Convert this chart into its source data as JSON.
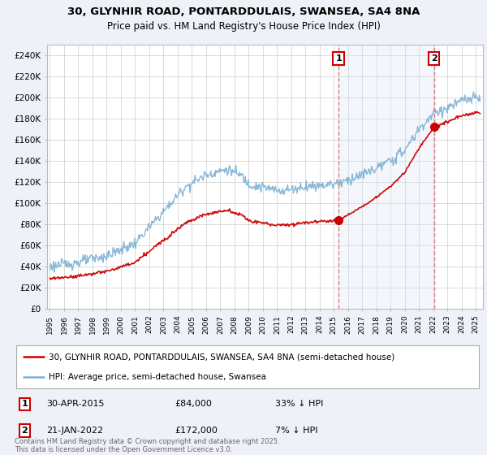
{
  "title": "30, GLYNHIR ROAD, PONTARDDULAIS, SWANSEA, SA4 8NA",
  "subtitle": "Price paid vs. HM Land Registry's House Price Index (HPI)",
  "ylabel_ticks": [
    "£0",
    "£20K",
    "£40K",
    "£60K",
    "£80K",
    "£100K",
    "£120K",
    "£140K",
    "£160K",
    "£180K",
    "£200K",
    "£220K",
    "£240K"
  ],
  "ytick_vals": [
    0,
    20000,
    40000,
    60000,
    80000,
    100000,
    120000,
    140000,
    160000,
    180000,
    200000,
    220000,
    240000
  ],
  "ylim": [
    0,
    250000
  ],
  "xlim_start": 1994.8,
  "xlim_end": 2025.5,
  "sale1_date": 2015.33,
  "sale1_price": 84000,
  "sale1_label": "1",
  "sale2_date": 2022.05,
  "sale2_price": 172000,
  "sale2_label": "2",
  "legend_line1": "30, GLYNHIR ROAD, PONTARDDULAIS, SWANSEA, SA4 8NA (semi-detached house)",
  "legend_line2": "HPI: Average price, semi-detached house, Swansea",
  "footer": "Contains HM Land Registry data © Crown copyright and database right 2025.\nThis data is licensed under the Open Government Licence v3.0.",
  "line_color_red": "#cc0000",
  "line_color_blue": "#7bafd4",
  "background_color": "#eef2f8",
  "plot_bg_color": "#ffffff",
  "shade_color": "#dde8f5",
  "dashed_line_color": "#e08080",
  "sale1_date_str": "30-APR-2015",
  "sale1_price_str": "£84,000",
  "sale1_hpi_str": "33% ↓ HPI",
  "sale2_date_str": "21-JAN-2022",
  "sale2_price_str": "£172,000",
  "sale2_hpi_str": "7% ↓ HPI",
  "title_fontsize": 9.5,
  "subtitle_fontsize": 8.5
}
